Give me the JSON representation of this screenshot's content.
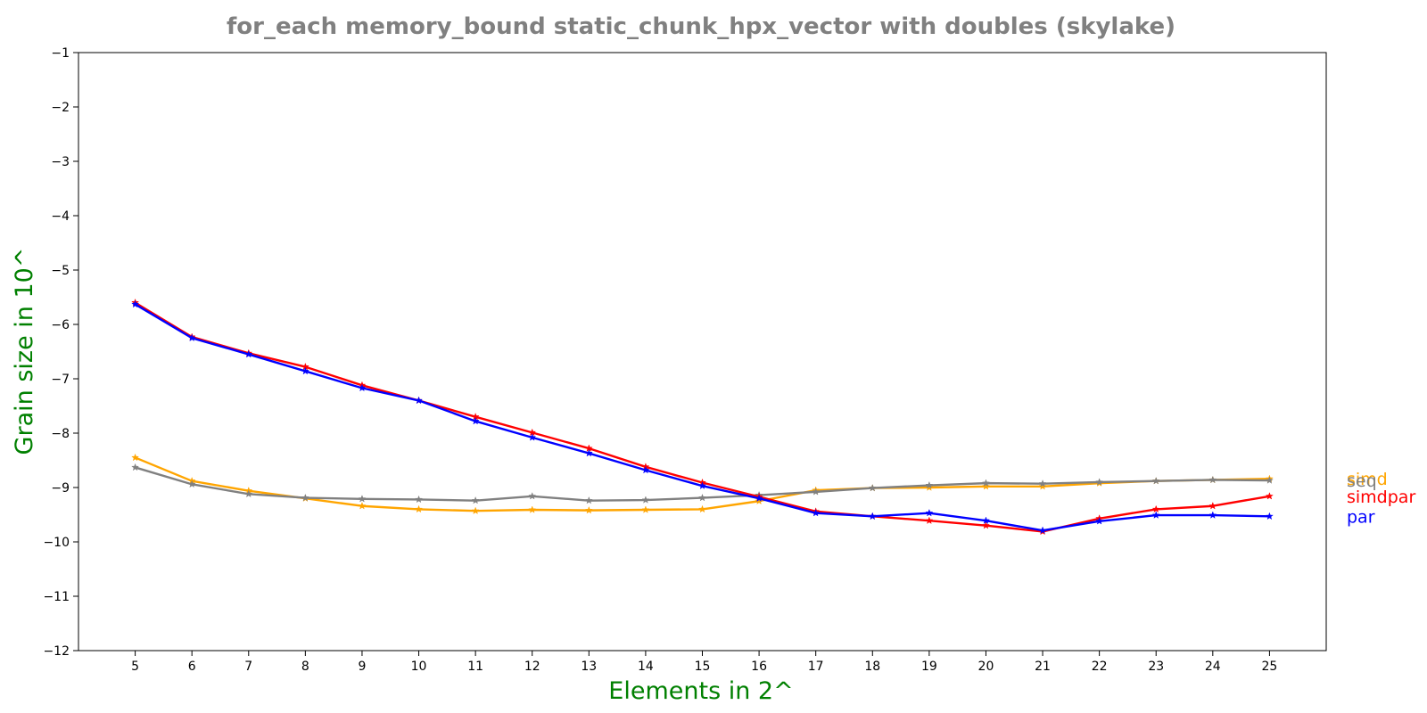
{
  "chart_data": {
    "type": "line",
    "title": "for_each memory_bound static_chunk_hpx_vector with doubles  (skylake)",
    "xlabel": "Elements in 2^",
    "ylabel": "Grain size in 10^",
    "x": [
      5,
      6,
      7,
      8,
      9,
      10,
      11,
      12,
      13,
      14,
      15,
      16,
      17,
      18,
      19,
      20,
      21,
      22,
      23,
      24,
      25
    ],
    "xticks": [
      "5",
      "6",
      "7",
      "8",
      "9",
      "10",
      "11",
      "12",
      "13",
      "14",
      "15",
      "16",
      "17",
      "18",
      "19",
      "20",
      "21",
      "22",
      "23",
      "24",
      "25"
    ],
    "xlim": [
      4,
      26
    ],
    "ylim": [
      -12,
      -1
    ],
    "yticks": [
      "−12",
      "−11",
      "−10",
      "−9",
      "−8",
      "−7",
      "−6",
      "−5",
      "−4",
      "−3",
      "−2",
      "−1"
    ],
    "grid": false,
    "marker": "star",
    "legend_placement": "right-outside",
    "series": [
      {
        "name": "simd",
        "color": "#ffa500",
        "values": [
          -8.45,
          -8.88,
          -9.06,
          -9.2,
          -9.34,
          -9.4,
          -9.43,
          -9.41,
          -9.42,
          -9.41,
          -9.4,
          -9.25,
          -9.05,
          -9.01,
          -9.0,
          -8.98,
          -8.98,
          -8.92,
          -8.88,
          -8.86,
          -8.84
        ]
      },
      {
        "name": "seq",
        "color": "#808080",
        "values": [
          -8.63,
          -8.94,
          -9.12,
          -9.19,
          -9.21,
          -9.22,
          -9.24,
          -9.16,
          -9.24,
          -9.23,
          -9.19,
          -9.14,
          -9.08,
          -9.01,
          -8.96,
          -8.92,
          -8.93,
          -8.9,
          -8.88,
          -8.86,
          -8.87
        ]
      },
      {
        "name": "simdpar",
        "color": "#ff0000",
        "values": [
          -5.6,
          -6.23,
          -6.53,
          -6.78,
          -7.12,
          -7.4,
          -7.7,
          -7.99,
          -8.28,
          -8.62,
          -8.91,
          -9.17,
          -9.44,
          -9.53,
          -9.61,
          -9.7,
          -9.81,
          -9.57,
          -9.4,
          -9.34,
          -9.16
        ]
      },
      {
        "name": "par",
        "color": "#0000ff",
        "values": [
          -5.63,
          -6.25,
          -6.55,
          -6.86,
          -7.17,
          -7.4,
          -7.78,
          -8.08,
          -8.37,
          -8.68,
          -8.97,
          -9.2,
          -9.47,
          -9.53,
          -9.47,
          -9.61,
          -9.79,
          -9.62,
          -9.51,
          -9.51,
          -9.53
        ]
      }
    ]
  },
  "colors": {
    "title": "#808080",
    "axis_label": "#008000",
    "axes": "#000000"
  }
}
